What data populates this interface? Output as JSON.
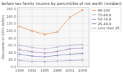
{
  "chart_data": {
    "type": "line",
    "title": "before-tax family income by percentiles of net worth (median)",
    "y_label": "thousands of 2004 dollars",
    "x": [
      1989,
      1992,
      1995,
      1998,
      2001,
      2004
    ],
    "xlim": [
      1988.5,
      2005.5
    ],
    "xticks": [
      1989,
      1992,
      1995,
      1998,
      2001,
      2004
    ],
    "ylim": [
      0,
      165
    ],
    "yticks": [
      {
        "value": 0,
        "label": "0.0"
      },
      {
        "value": 20,
        "label": "20.0"
      },
      {
        "value": 40,
        "label": "40.0"
      },
      {
        "value": 60,
        "label": "60.0"
      },
      {
        "value": 80,
        "label": "80.0"
      },
      {
        "value": 100,
        "label": "100.0"
      },
      {
        "value": 120,
        "label": "120.0"
      },
      {
        "value": 140,
        "label": "140.0"
      },
      {
        "value": 160,
        "label": "160.0"
      }
    ],
    "series": [
      {
        "name": "90-100",
        "color": "#e8a070",
        "values": [
          112,
          100,
          90,
          97,
          138,
          158
        ]
      },
      {
        "name": "75-89.9",
        "color": "#c0b8d8",
        "values": [
          60,
          54,
          50,
          55,
          60,
          62
        ]
      },
      {
        "name": "50-74.9",
        "color": "#b898c8",
        "values": [
          48,
          42,
          38,
          43,
          50,
          52
        ]
      },
      {
        "name": "25-49.9",
        "color": "#9898c8",
        "values": [
          35,
          30,
          28,
          32,
          35,
          37
        ]
      },
      {
        "name": "Less than 25",
        "color": "#b0b0cc",
        "values": [
          18,
          15,
          14,
          16,
          18,
          19
        ]
      }
    ],
    "grid": true,
    "legend": "upper right",
    "marker": "square"
  }
}
